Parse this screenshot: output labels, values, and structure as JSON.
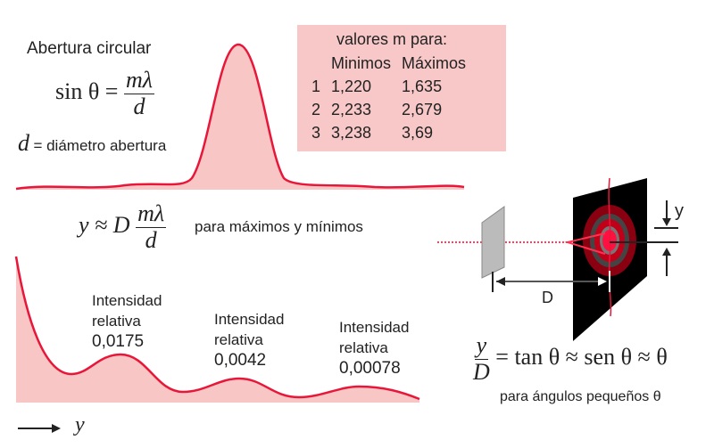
{
  "title": "Abertura circular",
  "formula1": {
    "lhs": "sin θ =",
    "num": "mλ",
    "den": "d"
  },
  "d_def": {
    "symbol": "d",
    "text": "= diámetro abertura"
  },
  "table": {
    "caption": "valores m para:",
    "headers": [
      "",
      "Minimos",
      "Máximos"
    ],
    "rows": [
      [
        "1",
        "1,220",
        "1,635"
      ],
      [
        "2",
        "2,233",
        "2,679"
      ],
      [
        "3",
        "3,238",
        "3,69"
      ]
    ]
  },
  "formula2": {
    "lhs": "y ≈ D",
    "num": "mλ",
    "den": "d",
    "note": "para máximos y mínimos"
  },
  "intensities": [
    {
      "label1": "Intensidad",
      "label2": "relativa",
      "value": "0,0175"
    },
    {
      "label1": "Intensidad",
      "label2": "relativa",
      "value": "0,0042"
    },
    {
      "label1": "Intensidad",
      "label2": "relativa",
      "value": "0,00078"
    }
  ],
  "axis_label": "y",
  "diagram": {
    "y_label": "y",
    "D_label": "D"
  },
  "formula3": {
    "num": "y",
    "den": "D",
    "rhs": "= tan θ ≈  sen θ ≈ θ",
    "note": "para ángulos pequeños θ"
  },
  "colors": {
    "curve": "#e8173a",
    "fill": "#f9c6c6",
    "screen": "#000000"
  }
}
